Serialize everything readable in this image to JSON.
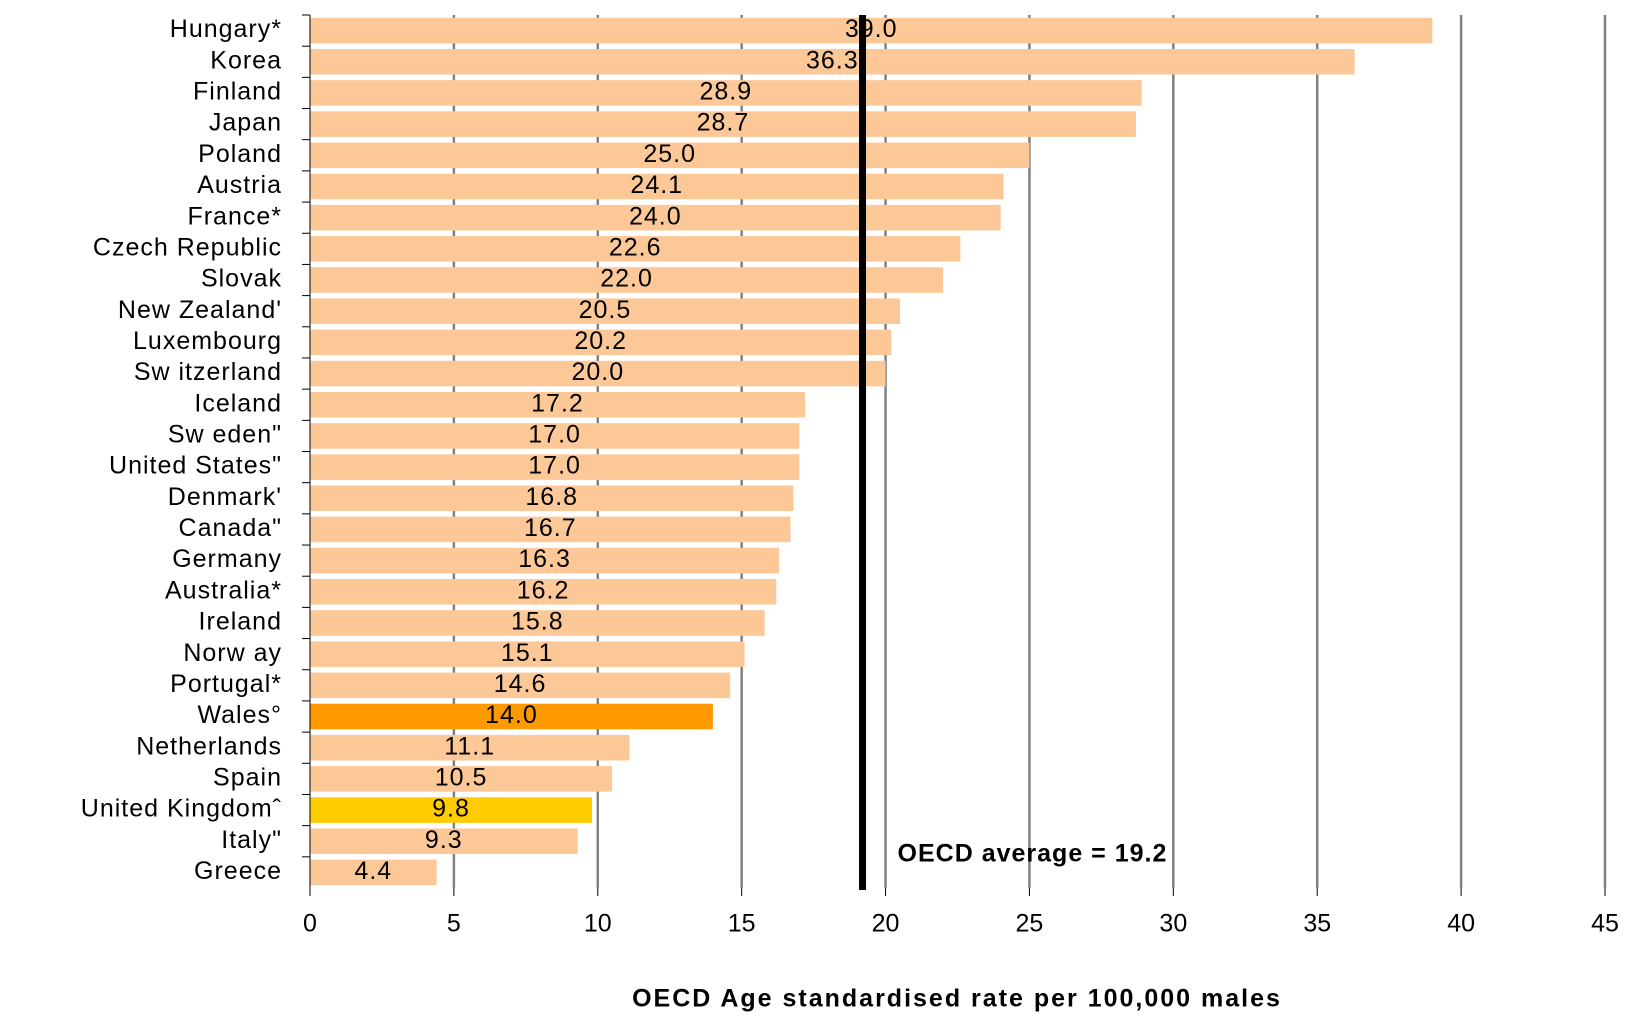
{
  "chart_data": {
    "type": "hbar",
    "xlabel": "OECD Age standardised rate per 100,000 males",
    "categories": [
      "Hungary*",
      "Korea",
      "Finland",
      "Japan",
      "Poland",
      "Austria",
      "France*",
      "Czech Republic",
      "Slovak",
      "New Zealand'",
      "Luxembourg",
      "Sw itzerland",
      "Iceland",
      "Sw eden\"",
      "United States\"",
      "Denmark'",
      "Canada\"",
      "Germany",
      "Australia*",
      "Ireland",
      "Norw ay",
      "Portugal*",
      "Wales°",
      "Netherlands",
      "Spain",
      "United Kingdomˆ",
      "Italy\"",
      "Greece"
    ],
    "values": [
      39.0,
      36.3,
      28.9,
      28.7,
      25.0,
      24.1,
      24.0,
      22.6,
      22.0,
      20.5,
      20.2,
      20.0,
      17.2,
      17.0,
      17.0,
      16.8,
      16.7,
      16.3,
      16.2,
      15.8,
      15.1,
      14.6,
      14.0,
      11.1,
      10.5,
      9.8,
      9.3,
      4.4
    ],
    "value_labels": [
      "39.0",
      "36.3",
      "28.9",
      "28.7",
      "25.0",
      "24.1",
      "24.0",
      "22.6",
      "22.0",
      "20.5",
      "20.2",
      "20.0",
      "17.2",
      "17.0",
      "17.0",
      "16.8",
      "16.7",
      "16.3",
      "16.2",
      "15.8",
      "15.1",
      "14.6",
      "14.0",
      "11.1",
      "10.5",
      "9.8",
      "9.3",
      "4.4"
    ],
    "colors": [
      "#fcc898",
      "#fcc898",
      "#fcc898",
      "#fcc898",
      "#fcc898",
      "#fcc898",
      "#fcc898",
      "#fcc898",
      "#fcc898",
      "#fcc898",
      "#fcc898",
      "#fcc898",
      "#fcc898",
      "#fcc898",
      "#fcc898",
      "#fcc898",
      "#fcc898",
      "#fcc898",
      "#fcc898",
      "#fcc898",
      "#fcc898",
      "#fcc898",
      "#ff9900",
      "#fcc898",
      "#fcc898",
      "#ffcc00",
      "#fcc898",
      "#fcc898"
    ],
    "xlim": [
      0,
      45
    ],
    "xticks": [
      0,
      5,
      10,
      15,
      20,
      25,
      30,
      35,
      40,
      45
    ],
    "grid": true,
    "average": 19.2,
    "average_label": "OECD average = 19.2"
  }
}
